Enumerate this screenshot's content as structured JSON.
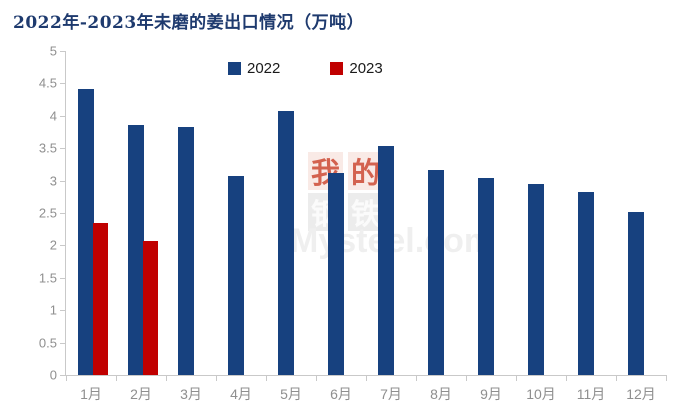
{
  "title": "2022年-2023年未磨的姜出口情况（万吨）",
  "watermark": {
    "chars": [
      "我",
      "的",
      "钢",
      "铁"
    ],
    "text": "Mysteel.com"
  },
  "chart_data": {
    "type": "bar",
    "title": "2022年-2023年未磨的姜出口情况（万吨）",
    "categories": [
      "1月",
      "2月",
      "3月",
      "4月",
      "5月",
      "6月",
      "7月",
      "8月",
      "9月",
      "10月",
      "11月",
      "12月"
    ],
    "series": [
      {
        "name": "2022",
        "color": "#17417F",
        "values": [
          4.41,
          3.86,
          3.82,
          3.07,
          4.07,
          3.12,
          3.53,
          3.16,
          3.04,
          2.94,
          2.83,
          2.52
        ]
      },
      {
        "name": "2023",
        "color": "#C00000",
        "values": [
          2.35,
          2.07,
          null,
          null,
          null,
          null,
          null,
          null,
          null,
          null,
          null,
          null
        ]
      }
    ],
    "xlabel": "",
    "ylabel": "",
    "ylim": [
      0,
      5
    ],
    "ytick_step": 0.5,
    "yticks": [
      "5",
      "4.5",
      "4",
      "3.5",
      "3",
      "2.5",
      "2",
      "1.5",
      "1",
      "0.5",
      "0"
    ],
    "grid": false,
    "legend_position": "top-center"
  }
}
